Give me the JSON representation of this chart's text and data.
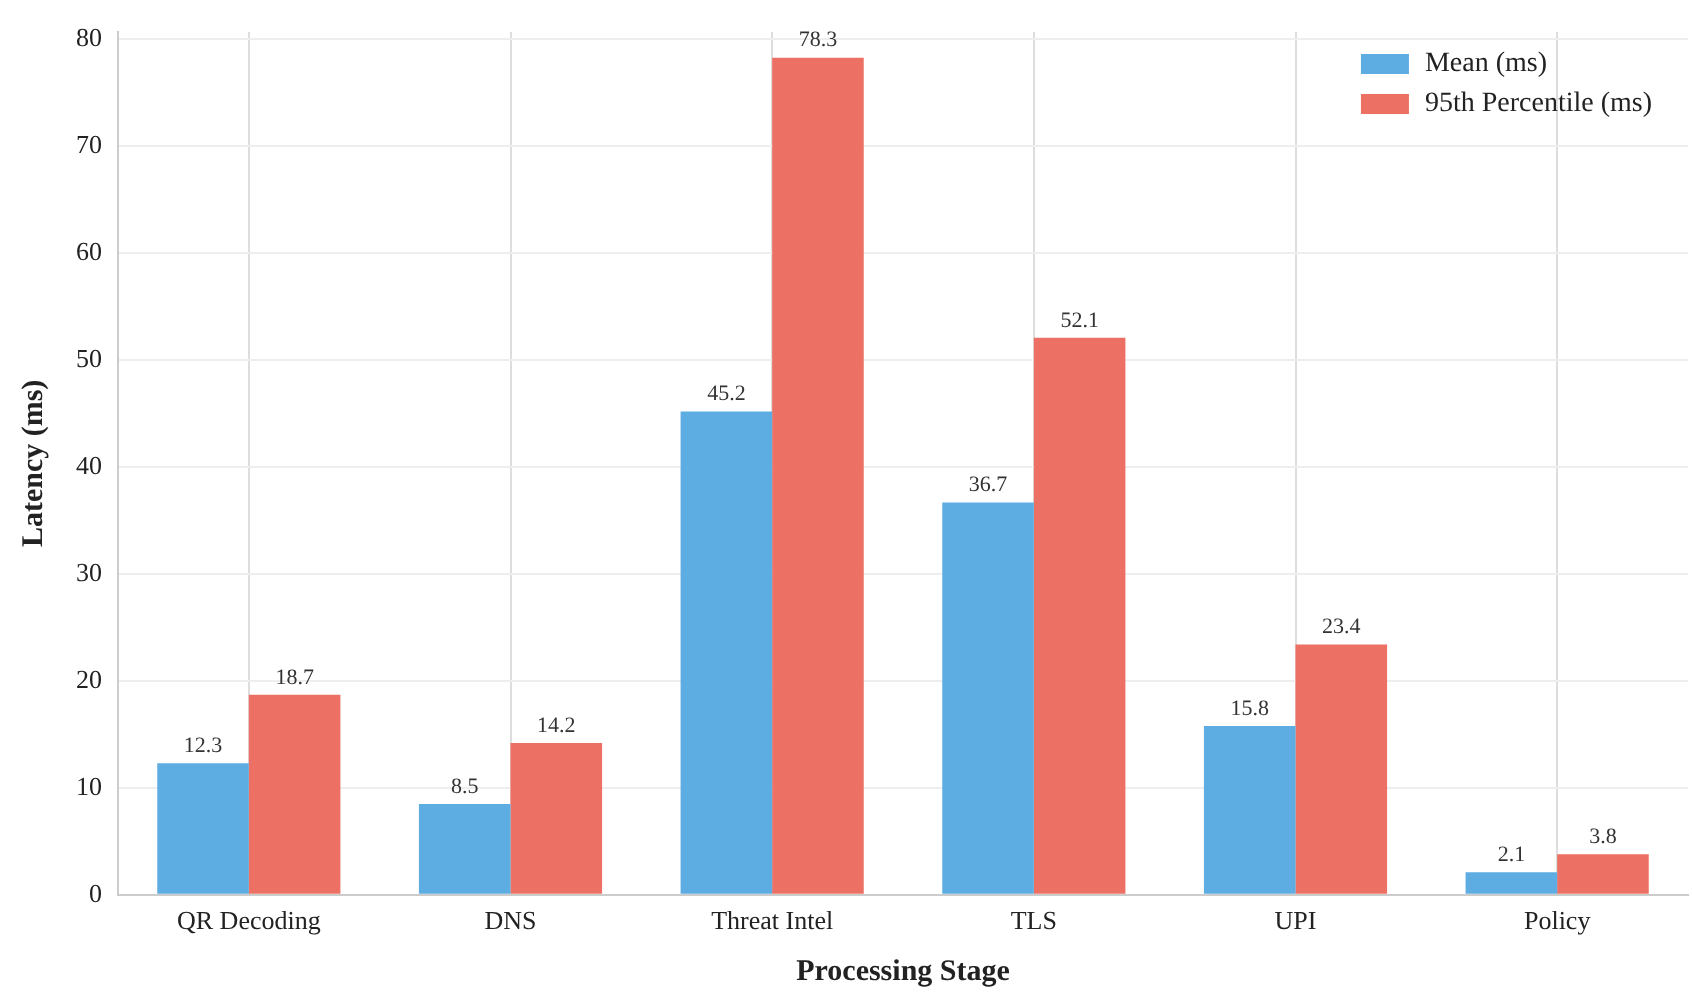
{
  "chart_data": {
    "type": "bar",
    "xlabel": "Processing Stage",
    "ylabel": "Latency (ms)",
    "categories": [
      "QR Decoding",
      "DNS",
      "Threat Intel",
      "TLS",
      "UPI",
      "Policy"
    ],
    "series": [
      {
        "name": "Mean (ms)",
        "color": "#5dade2",
        "values": [
          12.3,
          8.5,
          45.2,
          36.7,
          15.8,
          2.1
        ]
      },
      {
        "name": "95th Percentile (ms)",
        "color": "#ec7063",
        "values": [
          18.7,
          14.2,
          78.3,
          52.1,
          23.4,
          3.8
        ]
      }
    ],
    "ylim": [
      0,
      80.7
    ],
    "yticks": [
      0,
      10,
      20,
      30,
      40,
      50,
      60,
      70,
      80
    ],
    "grid": true,
    "legend": "top right",
    "data_labels": true
  }
}
